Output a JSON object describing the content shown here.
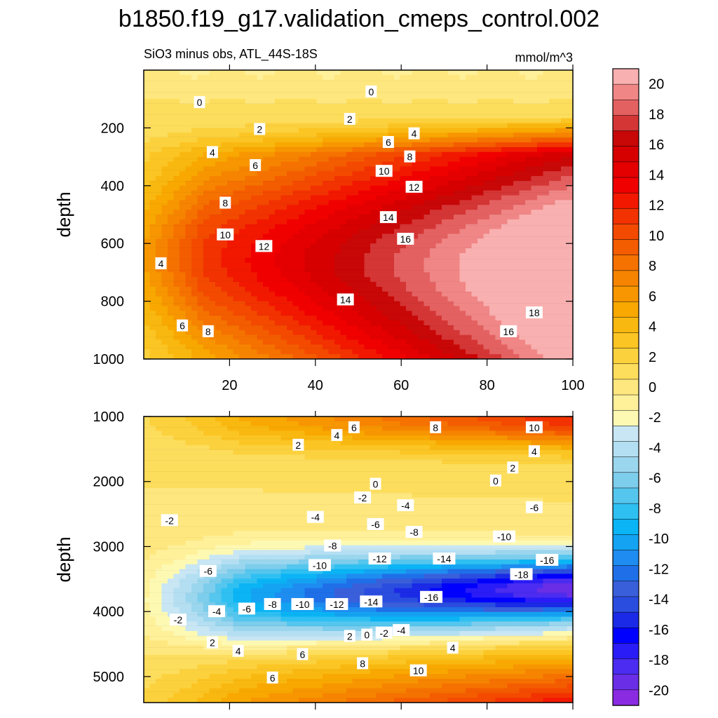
{
  "chart_data": {
    "type": "contour",
    "title": "b1850.f19_g17.validation_cmeps_control.002",
    "subtitle_left": "SiO3 minus obs, ATL_44S-18S",
    "units": "mmol/m^3",
    "colorbar": {
      "levels": [
        -21,
        -20,
        -19,
        -18,
        -17,
        -16,
        -15,
        -14,
        -13,
        -12,
        -11,
        -10,
        -9,
        -8,
        -7,
        -6,
        -5,
        -4,
        -3,
        -2,
        -1,
        0,
        1,
        2,
        3,
        4,
        5,
        6,
        7,
        8,
        9,
        10,
        11,
        12,
        13,
        14,
        15,
        16,
        17,
        18,
        19,
        20,
        21
      ],
      "colors": [
        "#8a2be2",
        "#6a2ee6",
        "#4b2cf0",
        "#2a1cf6",
        "#0000ff",
        "#1a2ae6",
        "#2a4de0",
        "#3a5fdb",
        "#1f6fe8",
        "#1e8cf0",
        "#14a3f2",
        "#0ab4f5",
        "#2fc0f2",
        "#55c6ee",
        "#7dcdec",
        "#9ad6ee",
        "#b4dff2",
        "#c8e6f4",
        "#fdf9b2",
        "#fff09a",
        "#fee77e",
        "#fddd5c",
        "#fcd13e",
        "#fbc524",
        "#f9b810",
        "#f8a800",
        "#f79600",
        "#f68400",
        "#f57100",
        "#f45c00",
        "#f34a00",
        "#f23200",
        "#f21800",
        "#f10000",
        "#e40000",
        "#d60000",
        "#c80707",
        "#d43535",
        "#e46161",
        "#f08686",
        "#f9b0b0"
      ],
      "tick_labels": [
        "20",
        "18",
        "16",
        "14",
        "12",
        "10",
        "8",
        "6",
        "4",
        "2",
        "0",
        "-2",
        "-4",
        "-6",
        "-8",
        "-10",
        "-12",
        "-14",
        "-16",
        "-18",
        "-20"
      ]
    },
    "panels": [
      {
        "name": "upper",
        "ylabel": "depth",
        "x_range": [
          0,
          100
        ],
        "y_range": [
          0,
          1000
        ],
        "y_inverted": true,
        "x_ticks": [
          "20",
          "40",
          "60",
          "80",
          "100"
        ],
        "y_ticks": [
          "200",
          "400",
          "600",
          "800",
          "1000"
        ],
        "contour_labels": [
          {
            "x": 13,
            "y": 112,
            "v": "0"
          },
          {
            "x": 53,
            "y": 75,
            "v": "0"
          },
          {
            "x": 48,
            "y": 170,
            "v": "2"
          },
          {
            "x": 27,
            "y": 205,
            "v": "2"
          },
          {
            "x": 63,
            "y": 220,
            "v": "4"
          },
          {
            "x": 16,
            "y": 285,
            "v": "4"
          },
          {
            "x": 57,
            "y": 250,
            "v": "6"
          },
          {
            "x": 26,
            "y": 330,
            "v": "6"
          },
          {
            "x": 62,
            "y": 300,
            "v": "8"
          },
          {
            "x": 19,
            "y": 460,
            "v": "8"
          },
          {
            "x": 56,
            "y": 350,
            "v": "10"
          },
          {
            "x": 19,
            "y": 570,
            "v": "10"
          },
          {
            "x": 63,
            "y": 405,
            "v": "12"
          },
          {
            "x": 28,
            "y": 610,
            "v": "12"
          },
          {
            "x": 57,
            "y": 510,
            "v": "14"
          },
          {
            "x": 47,
            "y": 795,
            "v": "14"
          },
          {
            "x": 61,
            "y": 585,
            "v": "16"
          },
          {
            "x": 85,
            "y": 905,
            "v": "16"
          },
          {
            "x": 91,
            "y": 840,
            "v": "18"
          },
          {
            "x": 4,
            "y": 670,
            "v": "4"
          },
          {
            "x": 9,
            "y": 885,
            "v": "6"
          },
          {
            "x": 15,
            "y": 905,
            "v": "8"
          }
        ]
      },
      {
        "name": "lower",
        "ylabel": "depth",
        "x_range": [
          0,
          100
        ],
        "y_range": [
          1000,
          5400
        ],
        "y_inverted": true,
        "x_ticks": [],
        "y_ticks": [
          "1000",
          "2000",
          "3000",
          "4000",
          "5000"
        ],
        "contour_labels": [
          {
            "x": 36,
            "y": 1440,
            "v": "2"
          },
          {
            "x": 45,
            "y": 1290,
            "v": "4"
          },
          {
            "x": 49,
            "y": 1170,
            "v": "6"
          },
          {
            "x": 68,
            "y": 1170,
            "v": "8"
          },
          {
            "x": 91,
            "y": 1170,
            "v": "10"
          },
          {
            "x": 91,
            "y": 1540,
            "v": "4"
          },
          {
            "x": 86,
            "y": 1790,
            "v": "2"
          },
          {
            "x": 54,
            "y": 2040,
            "v": "0"
          },
          {
            "x": 82,
            "y": 1990,
            "v": "0"
          },
          {
            "x": 51,
            "y": 2250,
            "v": "-2"
          },
          {
            "x": 61,
            "y": 2370,
            "v": "-4"
          },
          {
            "x": 91,
            "y": 2400,
            "v": "-6"
          },
          {
            "x": 40,
            "y": 2550,
            "v": "-4"
          },
          {
            "x": 54,
            "y": 2660,
            "v": "-6"
          },
          {
            "x": 63,
            "y": 2780,
            "v": "-8"
          },
          {
            "x": 84,
            "y": 2850,
            "v": "-10"
          },
          {
            "x": 44,
            "y": 2990,
            "v": "-8"
          },
          {
            "x": 55,
            "y": 3190,
            "v": "-12"
          },
          {
            "x": 70,
            "y": 3190,
            "v": "-14"
          },
          {
            "x": 94,
            "y": 3210,
            "v": "-16"
          },
          {
            "x": 41,
            "y": 3290,
            "v": "-10"
          },
          {
            "x": 88,
            "y": 3430,
            "v": "-18"
          },
          {
            "x": 67,
            "y": 3780,
            "v": "-16"
          },
          {
            "x": 53,
            "y": 3850,
            "v": "-14"
          },
          {
            "x": 45,
            "y": 3890,
            "v": "-12"
          },
          {
            "x": 37,
            "y": 3890,
            "v": "-10"
          },
          {
            "x": 30,
            "y": 3890,
            "v": "-8"
          },
          {
            "x": 24,
            "y": 3960,
            "v": "-6"
          },
          {
            "x": 17,
            "y": 4000,
            "v": "-4"
          },
          {
            "x": 8,
            "y": 4130,
            "v": "-2"
          },
          {
            "x": 6,
            "y": 2600,
            "v": "-2"
          },
          {
            "x": 15,
            "y": 3380,
            "v": "-6"
          },
          {
            "x": 48,
            "y": 4380,
            "v": "2"
          },
          {
            "x": 52,
            "y": 4360,
            "v": "0"
          },
          {
            "x": 56,
            "y": 4330,
            "v": "-2"
          },
          {
            "x": 60,
            "y": 4290,
            "v": "-4"
          },
          {
            "x": 16,
            "y": 4480,
            "v": "2"
          },
          {
            "x": 22,
            "y": 4610,
            "v": "4"
          },
          {
            "x": 37,
            "y": 4660,
            "v": "6"
          },
          {
            "x": 51,
            "y": 4800,
            "v": "8"
          },
          {
            "x": 64,
            "y": 4910,
            "v": "10"
          },
          {
            "x": 72,
            "y": 4560,
            "v": "4"
          },
          {
            "x": 30,
            "y": 5020,
            "v": "6"
          }
        ]
      }
    ]
  }
}
